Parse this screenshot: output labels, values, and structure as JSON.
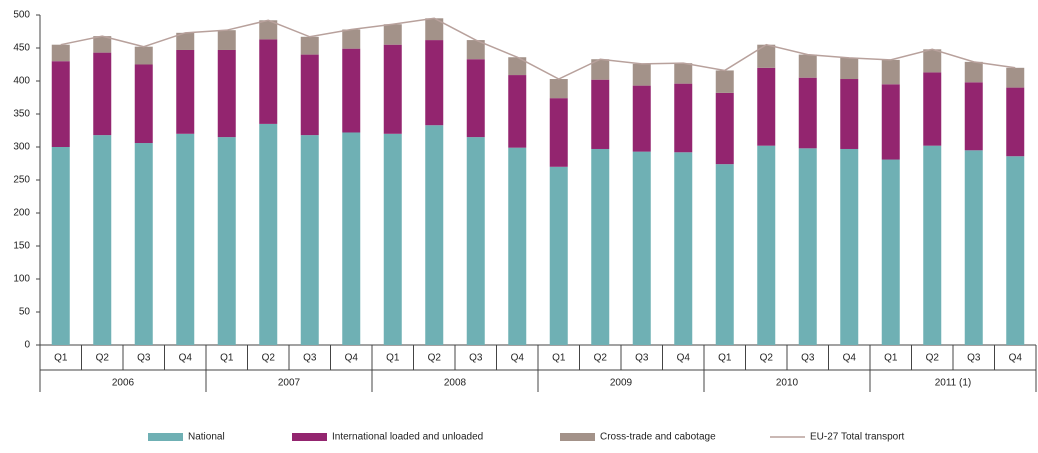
{
  "chart_data": {
    "type": "stacked-bar-line",
    "categories": [
      "Q1",
      "Q2",
      "Q3",
      "Q4",
      "Q1",
      "Q2",
      "Q3",
      "Q4",
      "Q1",
      "Q2",
      "Q3",
      "Q4",
      "Q1",
      "Q2",
      "Q3",
      "Q4",
      "Q1",
      "Q2",
      "Q3",
      "Q4",
      "Q1",
      "Q2",
      "Q3",
      "Q4"
    ],
    "groups": [
      "2006",
      "2007",
      "2008",
      "2009",
      "2010",
      "2011 (1)"
    ],
    "series": [
      {
        "name": "National",
        "color": "#6fb0b4",
        "values": [
          300,
          318,
          306,
          320,
          315,
          335,
          318,
          322,
          320,
          333,
          315,
          299,
          270,
          297,
          293,
          292,
          274,
          302,
          298,
          297,
          281,
          302,
          295,
          286
        ]
      },
      {
        "name": "International loaded and unloaded",
        "color": "#93256f",
        "values": [
          130,
          125,
          119,
          127,
          132,
          128,
          122,
          127,
          135,
          129,
          118,
          110,
          104,
          105,
          100,
          104,
          108,
          118,
          107,
          106,
          114,
          111,
          103,
          104
        ]
      },
      {
        "name": "Cross-trade and cabotage",
        "color": "#a39289",
        "values": [
          25,
          25,
          27,
          26,
          30,
          29,
          27,
          29,
          31,
          33,
          29,
          27,
          29,
          31,
          33,
          31,
          34,
          35,
          35,
          32,
          37,
          35,
          31,
          30
        ]
      },
      {
        "name": "EU-27 Total transport",
        "color": "#b8a19c",
        "type": "line",
        "values": [
          455,
          468,
          452,
          473,
          477,
          492,
          467,
          478,
          486,
          495,
          462,
          436,
          403,
          433,
          426,
          427,
          416,
          455,
          440,
          435,
          432,
          448,
          429,
          420
        ]
      }
    ],
    "ylim": [
      0,
      500
    ],
    "yticks": [
      0,
      50,
      100,
      150,
      200,
      250,
      300,
      350,
      400,
      450,
      500
    ],
    "grid": false,
    "legend": "bottom"
  }
}
